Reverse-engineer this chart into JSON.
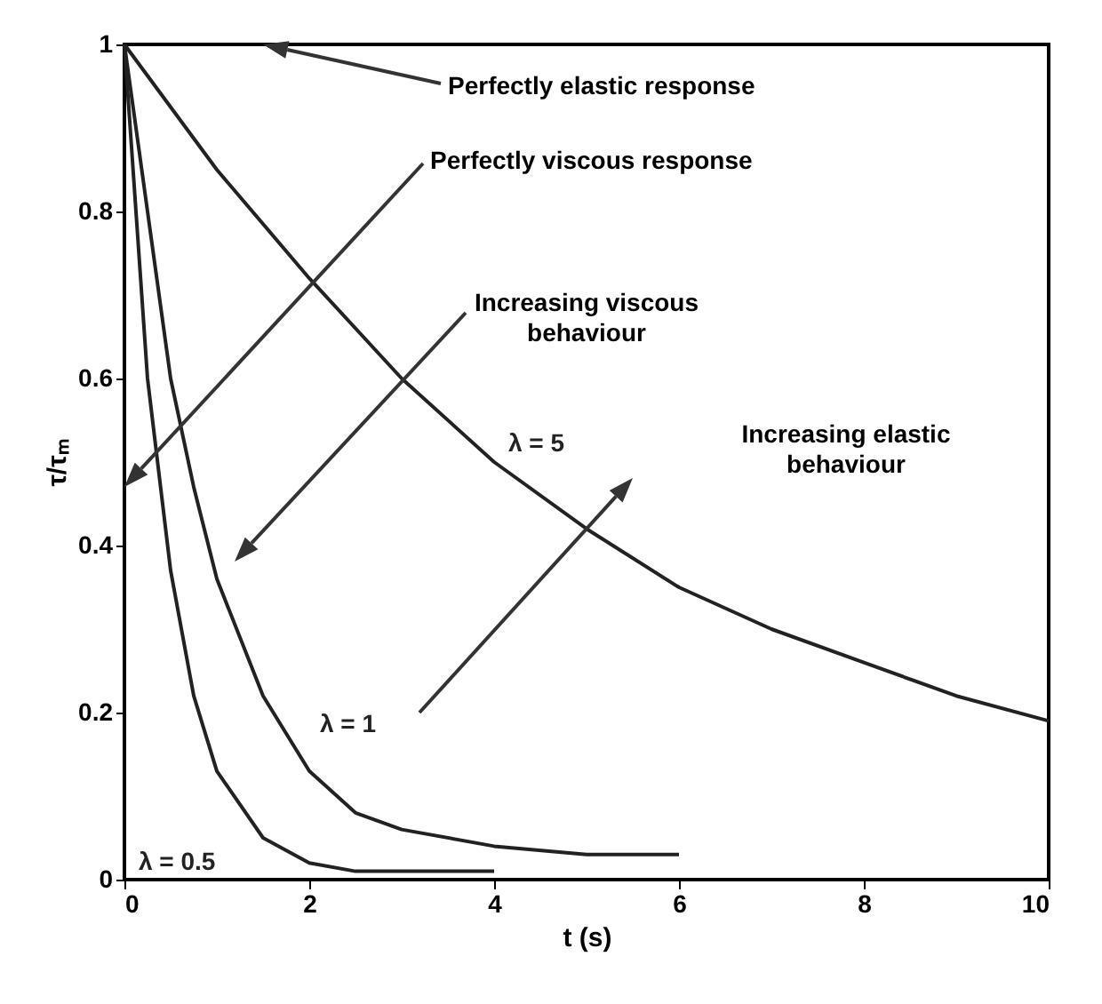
{
  "chart_data": {
    "type": "line",
    "xlabel": "t (s)",
    "ylabel": "τ/τₘ",
    "xlim": [
      0,
      10
    ],
    "ylim": [
      0,
      1
    ],
    "xticks": [
      0,
      2,
      4,
      6,
      8,
      10
    ],
    "yticks": [
      0,
      0.2,
      0.4,
      0.6,
      0.8,
      1
    ],
    "grid": false,
    "series": [
      {
        "name": "λ = 5",
        "color": "#222222",
        "x": [
          0,
          1,
          2,
          3,
          4,
          5,
          6,
          7,
          8,
          9,
          10
        ],
        "values": [
          1,
          0.85,
          0.72,
          0.6,
          0.5,
          0.42,
          0.35,
          0.3,
          0.26,
          0.22,
          0.19
        ]
      },
      {
        "name": "λ = 1",
        "color": "#222222",
        "x": [
          0,
          0.25,
          0.5,
          0.75,
          1,
          1.5,
          2,
          2.5,
          3,
          4,
          5,
          6
        ],
        "values": [
          1,
          0.8,
          0.6,
          0.47,
          0.36,
          0.22,
          0.13,
          0.08,
          0.06,
          0.04,
          0.03,
          0.03
        ]
      },
      {
        "name": "λ = 0.5",
        "color": "#222222",
        "x": [
          0,
          0.25,
          0.5,
          0.75,
          1,
          1.5,
          2,
          2.5,
          3,
          4
        ],
        "values": [
          1,
          0.6,
          0.37,
          0.22,
          0.13,
          0.05,
          0.02,
          0.01,
          0.01,
          0.01
        ]
      }
    ],
    "annotations": [
      "Perfectly elastic response",
      "Perfectly viscous response",
      "Increasing viscous behaviour",
      "Increasing elastic behaviour"
    ]
  }
}
